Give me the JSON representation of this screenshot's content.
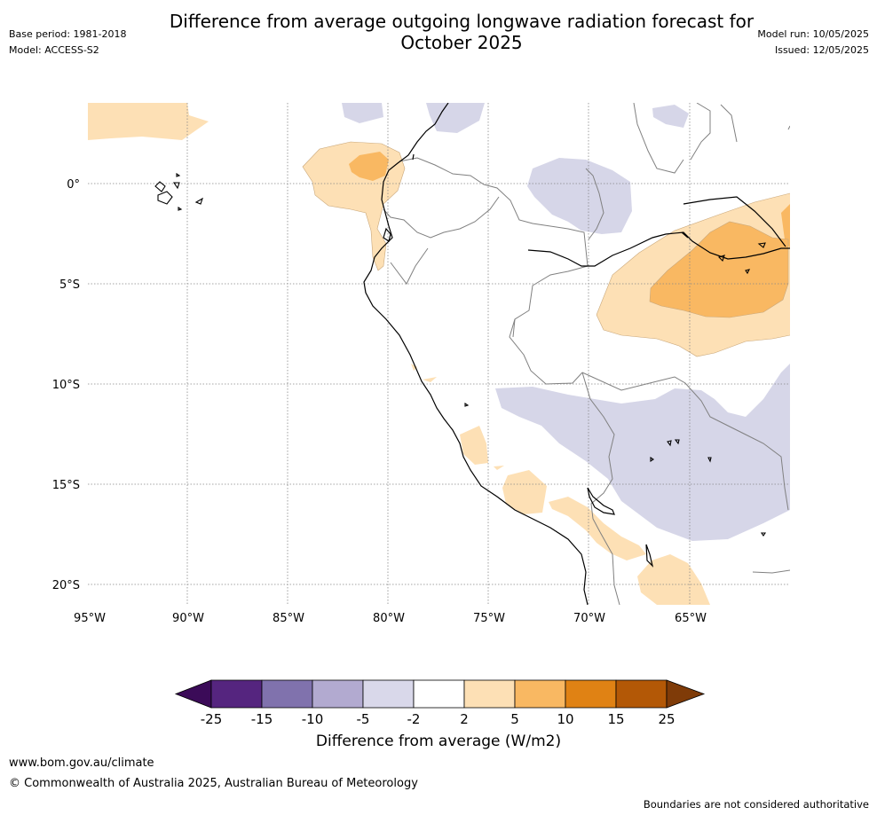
{
  "title": "Difference from average outgoing longwave radiation forecast for October 2025",
  "title_line1": "Difference from average outgoing longwave radiation forecast for",
  "title_line2": "October 2025",
  "meta_left": {
    "base_period": "Base period: 1981-2018",
    "model": "Model: ACCESS-S2"
  },
  "meta_right": {
    "model_run": "Model run: 10/05/2025",
    "issued": "Issued: 12/05/2025"
  },
  "map": {
    "lat_labels": [
      "0°",
      "5°S",
      "10°S",
      "15°S",
      "20°S"
    ],
    "lon_labels": [
      "95°W",
      "90°W",
      "85°W",
      "80°W",
      "75°W",
      "70°W",
      "65°W"
    ],
    "colors": {
      "light_purple": "#d6d6e8",
      "light_orange": "#fde0b5",
      "mid_orange": "#f9b862",
      "coast": "#000000",
      "border": "#808080",
      "grid": "#888888"
    }
  },
  "colorbar": {
    "ticks": [
      "-25",
      "-15",
      "-10",
      "-5",
      "-2",
      "2",
      "5",
      "10",
      "15",
      "25"
    ],
    "colors": [
      "#3b0b58",
      "#55257f",
      "#8072ad",
      "#b2aad0",
      "#d9d8ea",
      "#ffffff",
      "#fde0b5",
      "#f9b862",
      "#e08214",
      "#b35806",
      "#7f3b08"
    ],
    "label": "Difference from average (W/m2)"
  },
  "footer": {
    "url": "www.bom.gov.au/climate",
    "copyright": "© Commonwealth of Australia 2025, Australian Bureau of Meteorology",
    "note": "Boundaries are not considered authoritative"
  }
}
